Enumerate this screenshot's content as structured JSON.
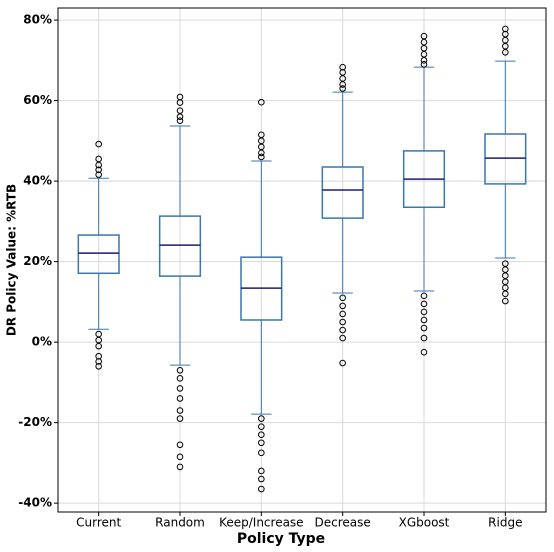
{
  "chart_data": {
    "type": "box",
    "x_label": "Policy Type",
    "y_label": "DR Policy Value: %RTB",
    "categories": [
      "Current",
      "Random",
      "Keep/Increase",
      "Decrease",
      "XGboost",
      "Ridge"
    ],
    "box_color": "#3a76af",
    "median_color": "#1c1c78",
    "flier_color": "#000000",
    "boxes": [
      {
        "whislo": 3.2,
        "q1": 17.1,
        "med": 22.1,
        "q3": 26.6,
        "whishi": 40.7,
        "fliers": [
          49.2,
          45.5,
          44.0,
          42.8,
          41.6,
          2.0,
          0.5,
          -1.0,
          -3.5,
          -4.8,
          -6.0
        ]
      },
      {
        "whislo": -5.7,
        "q1": 16.4,
        "med": 24.1,
        "q3": 31.3,
        "whishi": 53.7,
        "fliers": [
          60.9,
          59.5,
          57.5,
          56.0,
          55.0,
          -7.0,
          -9.0,
          -11.5,
          -14.0,
          -17.0,
          -19.0,
          -25.5,
          -28.5,
          -31.0
        ]
      },
      {
        "whislo": -17.9,
        "q1": 5.5,
        "med": 13.4,
        "q3": 21.1,
        "whishi": 45.0,
        "fliers": [
          59.6,
          51.5,
          50.0,
          48.5,
          47.0,
          46.0,
          -19.0,
          -21.0,
          -23.0,
          -25.0,
          -27.5,
          -32.0,
          -34.0,
          -36.5
        ]
      },
      {
        "whislo": 12.2,
        "q1": 30.8,
        "med": 37.8,
        "q3": 43.5,
        "whishi": 62.1,
        "fliers": [
          68.3,
          67.0,
          65.5,
          64.0,
          63.0,
          11.0,
          9.0,
          7.0,
          5.0,
          3.0,
          1.0,
          -5.2
        ]
      },
      {
        "whislo": 12.7,
        "q1": 33.5,
        "med": 40.5,
        "q3": 47.5,
        "whishi": 68.3,
        "fliers": [
          76.0,
          74.5,
          73.0,
          71.5,
          70.0,
          69.0,
          11.5,
          9.5,
          7.5,
          5.5,
          3.5,
          1.0,
          -2.5
        ]
      },
      {
        "whislo": 20.9,
        "q1": 39.3,
        "med": 45.7,
        "q3": 51.7,
        "whishi": 69.8,
        "fliers": [
          77.8,
          76.5,
          75.0,
          73.5,
          72.0,
          19.5,
          18.0,
          16.5,
          15.0,
          13.5,
          12.0,
          10.2
        ]
      }
    ],
    "ylim": [
      -42.2,
      83
    ],
    "yticks": [
      {
        "value": -40,
        "label": "-40%"
      },
      {
        "value": -20,
        "label": "-20%"
      },
      {
        "value": 0,
        "label": "0%"
      },
      {
        "value": 20,
        "label": "20%"
      },
      {
        "value": 40,
        "label": "40%"
      },
      {
        "value": 60,
        "label": "60%"
      },
      {
        "value": 80,
        "label": "80%"
      }
    ],
    "grid": true
  }
}
